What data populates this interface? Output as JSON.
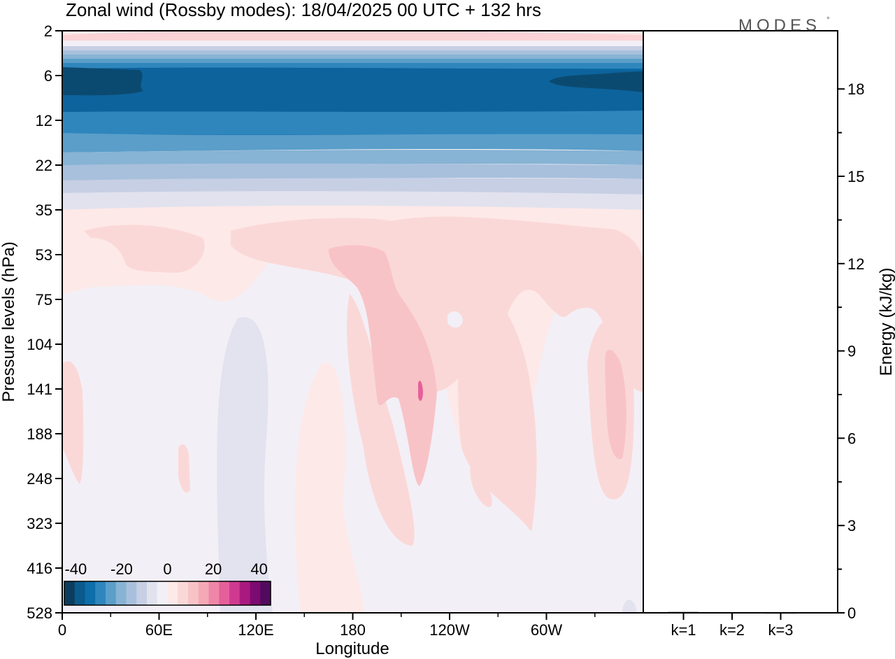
{
  "title": "Zonal wind (Rossby modes):  18/04/2025  00 UTC  + 132 hrs",
  "logo": {
    "text": "MODES",
    "mark": "°"
  },
  "colors": {
    "bg": "#ffffff",
    "neg_scale": [
      "#0b3d5f",
      "#0b5a8c",
      "#0e6eaa",
      "#2f86bd",
      "#5a9ec9",
      "#87b3d4",
      "#a8c0dc",
      "#c7cfe4",
      "#e1e2ee",
      "#f2eff6"
    ],
    "pos_scale": [
      "#fde9e8",
      "#fbd8d8",
      "#f8c3c7",
      "#f5a9b6",
      "#f086a7",
      "#e5609a",
      "#cf3a90",
      "#a91a80",
      "#7d0a70",
      "#520a5e"
    ]
  },
  "chart_data": [
    {
      "type": "heatmap",
      "title": "Zonal wind (Rossby modes):  18/04/2025  00 UTC  + 132 hrs",
      "xlabel": "Longitude",
      "ylabel": "Pressure levels (hPa)",
      "x_ticks": [
        "0",
        "60E",
        "120E",
        "180",
        "120W",
        "60W"
      ],
      "x_range": [
        0,
        360
      ],
      "y_ticks": [
        "2",
        "6",
        "12",
        "22",
        "35",
        "53",
        "75",
        "104",
        "141",
        "188",
        "248",
        "323",
        "416",
        "528"
      ],
      "y_scale": "level index (non-uniform)",
      "colorbar": {
        "ticks": [
          "-40",
          "-20",
          "0",
          "20",
          "40"
        ],
        "range": [
          -45,
          45
        ],
        "step": 4.5,
        "placement": "bottom-left"
      },
      "field_description": "Zonal wind in m/s; strong easterlies (about -40) near 6 hPa, near zero below 35 hPa with weak positive maxima (up to about +20) around 160W-120W and near 20W in the upper troposphere."
    },
    {
      "type": "bar",
      "ylabel": "Energy (kJ/kg)",
      "categories": [
        "k=1",
        "k=2",
        "k=3"
      ],
      "values": [
        0.03,
        0.02,
        0.01
      ],
      "y_ticks": [
        "0",
        "3",
        "6",
        "9",
        "12",
        "15",
        "18"
      ],
      "ylim": [
        0,
        20
      ]
    }
  ]
}
